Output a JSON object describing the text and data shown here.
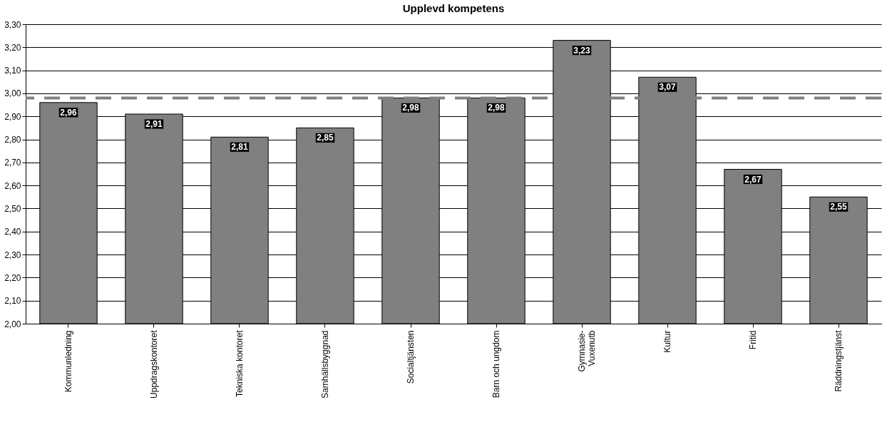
{
  "chart_data": {
    "type": "bar",
    "title": "Upplevd kompetens",
    "categories": [
      "Kommunledning",
      "Uppdragskontoret",
      "Tekniska kontoret",
      "Samhällsbyggnad",
      "Socialtjänsten",
      "Barn och ungdom",
      "Gymnasie-\nVuxenutb",
      "Kultur",
      "Fritid",
      "Räddningstjänst"
    ],
    "values": [
      2.96,
      2.91,
      2.81,
      2.85,
      2.98,
      2.98,
      3.23,
      3.07,
      2.67,
      2.55
    ],
    "value_labels": [
      "2,96",
      "2,91",
      "2,81",
      "2,85",
      "2,98",
      "2,98",
      "3,23",
      "3,07",
      "2,67",
      "2,55"
    ],
    "color": "#808080",
    "ylim": [
      2.0,
      3.3
    ],
    "yticks": [
      {
        "value": 2.0,
        "label": "2,00"
      },
      {
        "value": 2.1,
        "label": "2,10"
      },
      {
        "value": 2.2,
        "label": "2,20"
      },
      {
        "value": 2.3,
        "label": "2,30"
      },
      {
        "value": 2.4,
        "label": "2,40"
      },
      {
        "value": 2.5,
        "label": "2,50"
      },
      {
        "value": 2.6,
        "label": "2,60"
      },
      {
        "value": 2.7,
        "label": "2,70"
      },
      {
        "value": 2.8,
        "label": "2,80"
      },
      {
        "value": 2.9,
        "label": "2,90"
      },
      {
        "value": 3.0,
        "label": "3,00"
      },
      {
        "value": 3.1,
        "label": "3,10"
      },
      {
        "value": 3.2,
        "label": "3,20"
      },
      {
        "value": 3.3,
        "label": "3,30"
      }
    ],
    "ref_lines": [
      {
        "axis": "y",
        "value": 2.98,
        "color": "#808080",
        "line_style": "dashed"
      }
    ],
    "grid": "y"
  }
}
